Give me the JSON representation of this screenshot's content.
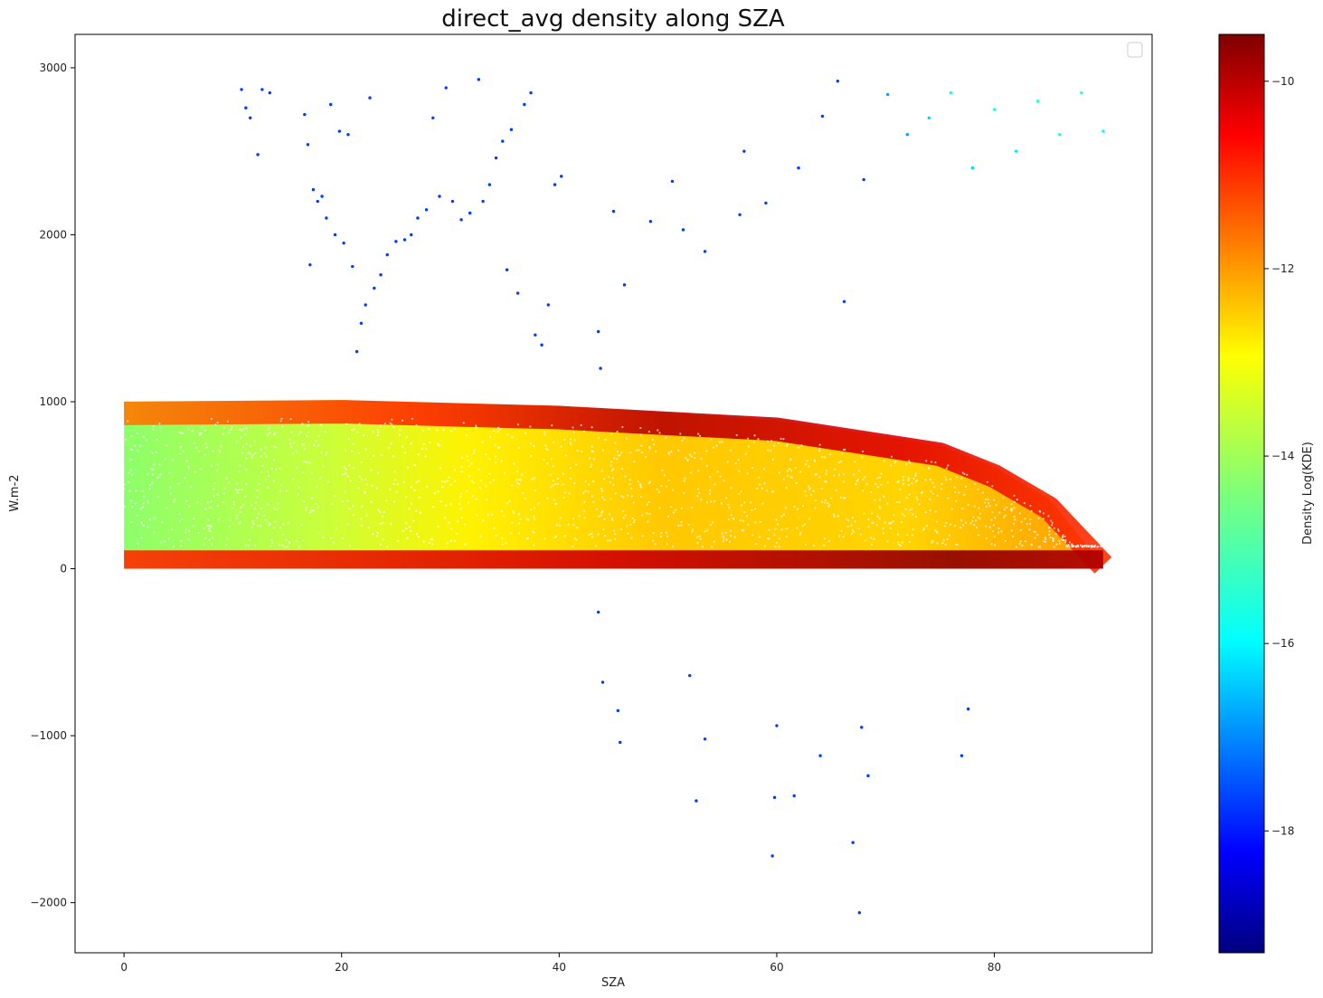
{
  "chart_data": {
    "type": "scatter",
    "title": "direct_avg density along SZA",
    "xlabel": "SZA",
    "ylabel": "W.m-2",
    "xlim": [
      -4.5,
      94.5
    ],
    "ylim": [
      -2300,
      3200
    ],
    "xticks": [
      0,
      20,
      40,
      60,
      80
    ],
    "yticks": [
      -2000,
      -1000,
      0,
      1000,
      2000,
      3000
    ],
    "xtick_labels": [
      "0",
      "20",
      "40",
      "60",
      "80"
    ],
    "ytick_labels": [
      "−2000",
      "−1000",
      "0",
      "1000",
      "2000",
      "3000"
    ],
    "colormap": "jet",
    "colorbar": {
      "label": "Density Log(KDE)",
      "range": [
        -19.3,
        -9.5
      ],
      "ticks": [
        -10,
        -12,
        -14,
        -16,
        -18
      ],
      "tick_labels": [
        "−10",
        "−12",
        "−14",
        "−16",
        "−18"
      ]
    },
    "legend": {
      "placement": "top-right",
      "entries": []
    },
    "grid": false,
    "density_band": {
      "description_points": [
        {
          "x": 0,
          "upper": 1000,
          "lower": 0
        },
        {
          "x": 20,
          "upper": 1010,
          "lower": 0
        },
        {
          "x": 40,
          "upper": 975,
          "lower": 0
        },
        {
          "x": 60,
          "upper": 890,
          "lower": 0
        },
        {
          "x": 75,
          "upper": 740,
          "lower": 0
        },
        {
          "x": 80,
          "upper": 610,
          "lower": 0
        },
        {
          "x": 85,
          "upper": 420,
          "lower": 0
        },
        {
          "x": 90,
          "upper": 20,
          "lower": 0
        }
      ]
    },
    "outliers": [
      {
        "x": 10.8,
        "y": 2870,
        "d": -17.5
      },
      {
        "x": 11.2,
        "y": 2760,
        "d": -17.5
      },
      {
        "x": 11.6,
        "y": 2700,
        "d": -17.5
      },
      {
        "x": 12.3,
        "y": 2480,
        "d": -17.5
      },
      {
        "x": 12.7,
        "y": 2870,
        "d": -17.5
      },
      {
        "x": 13.4,
        "y": 2850,
        "d": -17.5
      },
      {
        "x": 16.6,
        "y": 2720,
        "d": -17.5
      },
      {
        "x": 16.9,
        "y": 2540,
        "d": -17.5
      },
      {
        "x": 17.1,
        "y": 1820,
        "d": -17.5
      },
      {
        "x": 17.4,
        "y": 2270,
        "d": -17.5
      },
      {
        "x": 17.8,
        "y": 2200,
        "d": -17.5
      },
      {
        "x": 18.2,
        "y": 2230,
        "d": -17.5
      },
      {
        "x": 18.6,
        "y": 2100,
        "d": -17.5
      },
      {
        "x": 19.0,
        "y": 2780,
        "d": -17.5
      },
      {
        "x": 19.4,
        "y": 2000,
        "d": -17.5
      },
      {
        "x": 19.8,
        "y": 2620,
        "d": -17.5
      },
      {
        "x": 20.2,
        "y": 1950,
        "d": -17.5
      },
      {
        "x": 20.6,
        "y": 2600,
        "d": -17.5
      },
      {
        "x": 21.0,
        "y": 1810,
        "d": -17.5
      },
      {
        "x": 21.4,
        "y": 1300,
        "d": -17.5
      },
      {
        "x": 21.8,
        "y": 1470,
        "d": -17.5
      },
      {
        "x": 22.2,
        "y": 1580,
        "d": -17.5
      },
      {
        "x": 22.6,
        "y": 2820,
        "d": -17.5
      },
      {
        "x": 23.0,
        "y": 1680,
        "d": -17.5
      },
      {
        "x": 23.6,
        "y": 1760,
        "d": -17.5
      },
      {
        "x": 24.2,
        "y": 1880,
        "d": -17.5
      },
      {
        "x": 25.0,
        "y": 1960,
        "d": -17.5
      },
      {
        "x": 25.8,
        "y": 1970,
        "d": -17.5
      },
      {
        "x": 26.4,
        "y": 2000,
        "d": -17.5
      },
      {
        "x": 27.0,
        "y": 2100,
        "d": -17.5
      },
      {
        "x": 27.8,
        "y": 2150,
        "d": -17.5
      },
      {
        "x": 28.4,
        "y": 2700,
        "d": -17.5
      },
      {
        "x": 29.0,
        "y": 2230,
        "d": -17.5
      },
      {
        "x": 29.6,
        "y": 2880,
        "d": -17.5
      },
      {
        "x": 30.2,
        "y": 2200,
        "d": -17.5
      },
      {
        "x": 31.0,
        "y": 2090,
        "d": -17.5
      },
      {
        "x": 31.8,
        "y": 2130,
        "d": -17.5
      },
      {
        "x": 32.6,
        "y": 2930,
        "d": -17.5
      },
      {
        "x": 33.0,
        "y": 2200,
        "d": -17.5
      },
      {
        "x": 33.6,
        "y": 2300,
        "d": -17.5
      },
      {
        "x": 34.2,
        "y": 2460,
        "d": -17.5
      },
      {
        "x": 34.8,
        "y": 2560,
        "d": -17.5
      },
      {
        "x": 35.2,
        "y": 1790,
        "d": -17.5
      },
      {
        "x": 35.6,
        "y": 2630,
        "d": -17.5
      },
      {
        "x": 36.2,
        "y": 1650,
        "d": -17.5
      },
      {
        "x": 36.8,
        "y": 2780,
        "d": -17.5
      },
      {
        "x": 37.4,
        "y": 2850,
        "d": -17.5
      },
      {
        "x": 37.8,
        "y": 1400,
        "d": -17.5
      },
      {
        "x": 38.4,
        "y": 1340,
        "d": -17.5
      },
      {
        "x": 39.0,
        "y": 1580,
        "d": -17.5
      },
      {
        "x": 39.6,
        "y": 2300,
        "d": -17.5
      },
      {
        "x": 40.2,
        "y": 2350,
        "d": -17.5
      },
      {
        "x": 43.6,
        "y": 1420,
        "d": -17.5
      },
      {
        "x": 43.8,
        "y": 1200,
        "d": -17.5
      },
      {
        "x": 45.0,
        "y": 2140,
        "d": -17.5
      },
      {
        "x": 46.0,
        "y": 1700,
        "d": -17.5
      },
      {
        "x": 48.4,
        "y": 2080,
        "d": -17.5
      },
      {
        "x": 50.4,
        "y": 2320,
        "d": -17.5
      },
      {
        "x": 51.4,
        "y": 2030,
        "d": -17.5
      },
      {
        "x": 53.4,
        "y": 1900,
        "d": -17.5
      },
      {
        "x": 56.6,
        "y": 2120,
        "d": -17.5
      },
      {
        "x": 57.0,
        "y": 2500,
        "d": -17.5
      },
      {
        "x": 59.0,
        "y": 2190,
        "d": -17.5
      },
      {
        "x": 62.0,
        "y": 2400,
        "d": -17.5
      },
      {
        "x": 64.2,
        "y": 2710,
        "d": -17.5
      },
      {
        "x": 65.6,
        "y": 2920,
        "d": -17.5
      },
      {
        "x": 66.2,
        "y": 1600,
        "d": -17.5
      },
      {
        "x": 68.0,
        "y": 2330,
        "d": -17.5
      },
      {
        "x": 70.2,
        "y": 2840,
        "d": -16.5
      },
      {
        "x": 72.0,
        "y": 2600,
        "d": -16.5
      },
      {
        "x": 74.0,
        "y": 2700,
        "d": -16.0
      },
      {
        "x": 76.0,
        "y": 2850,
        "d": -15.5
      },
      {
        "x": 78.0,
        "y": 2400,
        "d": -16.0
      },
      {
        "x": 80.0,
        "y": 2750,
        "d": -15.5
      },
      {
        "x": 82.0,
        "y": 2500,
        "d": -15.8
      },
      {
        "x": 84.0,
        "y": 2800,
        "d": -15.3
      },
      {
        "x": 86.0,
        "y": 2600,
        "d": -15.5
      },
      {
        "x": 88.0,
        "y": 2850,
        "d": -15.2
      },
      {
        "x": 90.0,
        "y": 2620,
        "d": -15.6
      },
      {
        "x": 43.6,
        "y": -260,
        "d": -17.5
      },
      {
        "x": 44.0,
        "y": -680,
        "d": -17.5
      },
      {
        "x": 45.4,
        "y": -850,
        "d": -17.5
      },
      {
        "x": 45.6,
        "y": -1040,
        "d": -17.5
      },
      {
        "x": 52.0,
        "y": -640,
        "d": -17.5
      },
      {
        "x": 52.6,
        "y": -1390,
        "d": -17.5
      },
      {
        "x": 53.4,
        "y": -1020,
        "d": -17.5
      },
      {
        "x": 59.6,
        "y": -1720,
        "d": -17.5
      },
      {
        "x": 59.8,
        "y": -1370,
        "d": -17.5
      },
      {
        "x": 60.0,
        "y": -940,
        "d": -17.5
      },
      {
        "x": 61.6,
        "y": -1360,
        "d": -17.5
      },
      {
        "x": 64.0,
        "y": -1120,
        "d": -17.5
      },
      {
        "x": 67.0,
        "y": -1640,
        "d": -17.5
      },
      {
        "x": 67.6,
        "y": -2060,
        "d": -17.5
      },
      {
        "x": 67.8,
        "y": -950,
        "d": -17.5
      },
      {
        "x": 68.4,
        "y": -1240,
        "d": -17.5
      },
      {
        "x": 77.0,
        "y": -1120,
        "d": -17.5
      },
      {
        "x": 77.6,
        "y": -840,
        "d": -17.5
      }
    ]
  }
}
